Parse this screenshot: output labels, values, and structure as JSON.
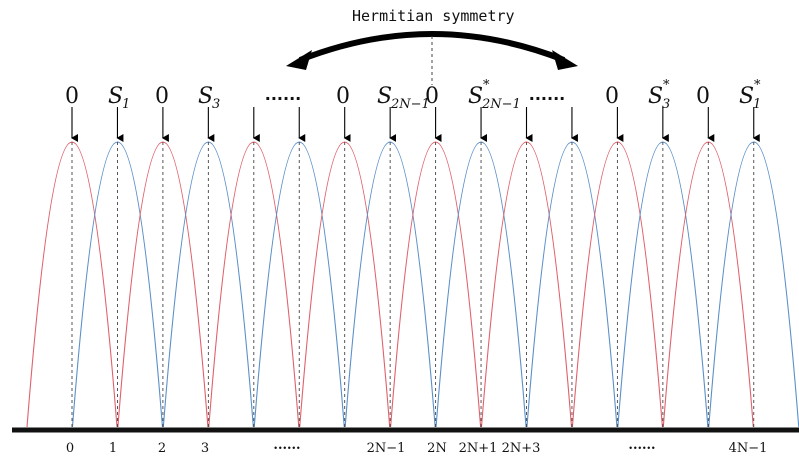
{
  "title": "Hermitian symmetry",
  "top_symbols": [
    {
      "base": "0",
      "sub": "",
      "sup": ""
    },
    {
      "base": "S",
      "sub": "1",
      "sup": ""
    },
    {
      "base": "0",
      "sub": "",
      "sup": ""
    },
    {
      "base": "S",
      "sub": "3",
      "sup": ""
    },
    {
      "base": "......",
      "sub": "",
      "sup": ""
    },
    {
      "base": "0",
      "sub": "",
      "sup": ""
    },
    {
      "base": "S",
      "sub": "2N−1",
      "sup": ""
    },
    {
      "base": "0",
      "sub": "",
      "sup": ""
    },
    {
      "base": "S",
      "sub": "2N−1",
      "sup": "*"
    },
    {
      "base": "......",
      "sub": "",
      "sup": ""
    },
    {
      "base": "0",
      "sub": "",
      "sup": ""
    },
    {
      "base": "S",
      "sub": "3",
      "sup": "*"
    },
    {
      "base": "0",
      "sub": "",
      "sup": ""
    },
    {
      "base": "S",
      "sub": "1",
      "sup": "*"
    }
  ],
  "bottom_labels": [
    "0",
    "1",
    "2",
    "3",
    "......",
    "2N−1",
    "2N",
    "2N+1",
    "2N+3",
    "......",
    "4N−1"
  ],
  "colors": {
    "even_subcarrier": "#e0606a",
    "odd_subcarrier": "#5a8fc8",
    "axis": "#111111",
    "arrow": "#000000"
  }
}
